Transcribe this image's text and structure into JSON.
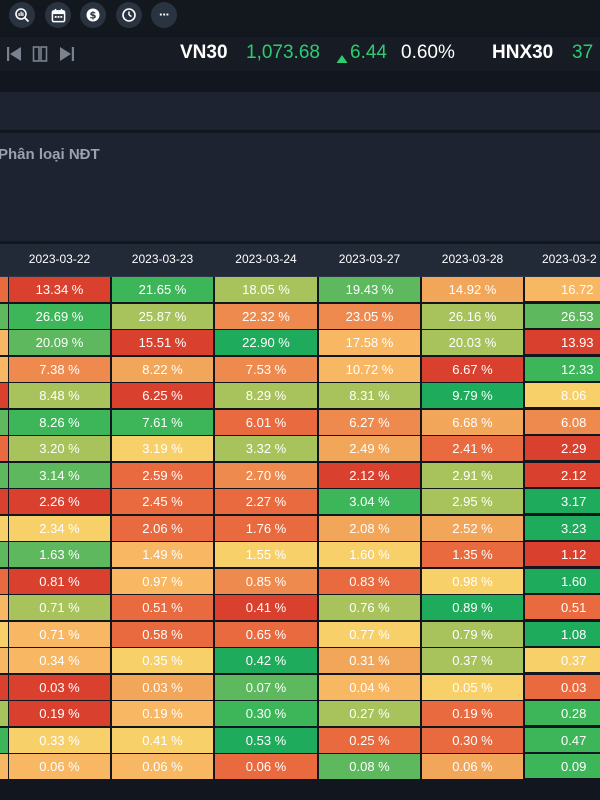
{
  "toolbar": {
    "icons": [
      {
        "name": "search-chart-icon"
      },
      {
        "name": "calendar-icon"
      },
      {
        "name": "coin-icon"
      },
      {
        "name": "clock-icon"
      },
      {
        "name": "more-icon",
        "glyph": "···"
      }
    ]
  },
  "ticker": {
    "items": [
      {
        "name": "VN30",
        "value": "1,073.68",
        "change": "6.44",
        "percent": "0.60%"
      },
      {
        "name": "HNX30",
        "value": "37"
      }
    ]
  },
  "panel": {
    "label": "Phân loại NĐT"
  },
  "table": {
    "columns": [
      "2023-03-22",
      "2023-03-23",
      "2023-03-24",
      "2023-03-27",
      "2023-03-28",
      "2023-03-2"
    ],
    "rows": [
      [
        "13.34 %",
        "21.65 %",
        "18.05 %",
        "19.43 %",
        "14.92 %",
        "16.72"
      ],
      [
        "26.69 %",
        "25.87 %",
        "22.32 %",
        "23.05 %",
        "26.16 %",
        "26.53"
      ],
      [
        "20.09 %",
        "15.51 %",
        "22.90 %",
        "17.58 %",
        "20.03 %",
        "13.93"
      ],
      [
        "7.38 %",
        "8.22 %",
        "7.53 %",
        "10.72 %",
        "6.67 %",
        "12.33"
      ],
      [
        "8.48 %",
        "6.25 %",
        "8.29 %",
        "8.31 %",
        "9.79 %",
        "8.06"
      ],
      [
        "8.26 %",
        "7.61 %",
        "6.01 %",
        "6.27 %",
        "6.68 %",
        "6.08"
      ],
      [
        "3.20 %",
        "3.19 %",
        "3.32 %",
        "2.49 %",
        "2.41 %",
        "2.29"
      ],
      [
        "3.14 %",
        "2.59 %",
        "2.70 %",
        "2.12 %",
        "2.91 %",
        "2.12"
      ],
      [
        "2.26 %",
        "2.45 %",
        "2.27 %",
        "3.04 %",
        "2.95 %",
        "3.17"
      ],
      [
        "2.34 %",
        "2.06 %",
        "1.76 %",
        "2.08 %",
        "2.52 %",
        "3.23"
      ],
      [
        "1.63 %",
        "1.49 %",
        "1.55 %",
        "1.60 %",
        "1.35 %",
        "1.12"
      ],
      [
        "0.81 %",
        "0.97 %",
        "0.85 %",
        "0.83 %",
        "0.98 %",
        "1.60"
      ],
      [
        "0.71 %",
        "0.51 %",
        "0.41 %",
        "0.76 %",
        "0.89 %",
        "0.51"
      ],
      [
        "0.71 %",
        "0.58 %",
        "0.65 %",
        "0.77 %",
        "0.79 %",
        "1.08"
      ],
      [
        "0.34 %",
        "0.35 %",
        "0.42 %",
        "0.31 %",
        "0.37 %",
        "0.37"
      ],
      [
        "0.03 %",
        "0.03 %",
        "0.07 %",
        "0.04 %",
        "0.05 %",
        "0.03"
      ],
      [
        "0.19 %",
        "0.19 %",
        "0.30 %",
        "0.27 %",
        "0.19 %",
        "0.28"
      ],
      [
        "0.33 %",
        "0.41 %",
        "0.53 %",
        "0.25 %",
        "0.30 %",
        "0.47"
      ],
      [
        "0.06 %",
        "0.06 %",
        "0.06 %",
        "0.08 %",
        "0.06 %",
        "0.09"
      ]
    ],
    "colors": [
      [
        "#d9412e",
        "#3db65a",
        "#a8c25c",
        "#5db85e",
        "#f2a65a",
        "#f7b763"
      ],
      [
        "#3db65a",
        "#a8c25c",
        "#ef8a4f",
        "#ef8a4f",
        "#a8c25c",
        "#5db85e"
      ],
      [
        "#5db85e",
        "#d9412e",
        "#1eab5c",
        "#f7b763",
        "#a8c25c",
        "#d9412e"
      ],
      [
        "#ef8a4f",
        "#f2a65a",
        "#ef8a4f",
        "#f7b763",
        "#d9412e",
        "#3db65a"
      ],
      [
        "#a8c25c",
        "#d9412e",
        "#a8c25c",
        "#a8c25c",
        "#1eab5c",
        "#f7d06a"
      ],
      [
        "#3db65a",
        "#3db65a",
        "#e86a3e",
        "#ef8a4f",
        "#f2a65a",
        "#ef8a4f"
      ],
      [
        "#a8c25c",
        "#f7d06a",
        "#a8c25c",
        "#f2a65a",
        "#e86a3e",
        "#d9412e"
      ],
      [
        "#5db85e",
        "#e86a3e",
        "#ef8a4f",
        "#d9412e",
        "#a8c25c",
        "#d9412e"
      ],
      [
        "#d9412e",
        "#e86a3e",
        "#e86a3e",
        "#3db65a",
        "#a8c25c",
        "#1eab5c"
      ],
      [
        "#f7d06a",
        "#e86a3e",
        "#e86a3e",
        "#f2a65a",
        "#f2a65a",
        "#1eab5c"
      ],
      [
        "#5db85e",
        "#f7b763",
        "#f7d06a",
        "#f7d06a",
        "#e86a3e",
        "#d9412e"
      ],
      [
        "#d9412e",
        "#f7b763",
        "#ef8a4f",
        "#e86a3e",
        "#f7d06a",
        "#1eab5c"
      ],
      [
        "#a8c25c",
        "#e86a3e",
        "#d9412e",
        "#a8c25c",
        "#1eab5c",
        "#e86a3e"
      ],
      [
        "#f7b763",
        "#e86a3e",
        "#e86a3e",
        "#f7d06a",
        "#a8c25c",
        "#1eab5c"
      ],
      [
        "#f7b763",
        "#f7d06a",
        "#1eab5c",
        "#f2a65a",
        "#a8c25c",
        "#f7d06a"
      ],
      [
        "#d9412e",
        "#f2a65a",
        "#5db85e",
        "#f7b763",
        "#f7d06a",
        "#e86a3e"
      ],
      [
        "#d9412e",
        "#f7b763",
        "#3db65a",
        "#a8c25c",
        "#e86a3e",
        "#3db65a"
      ],
      [
        "#f7d06a",
        "#f7d06a",
        "#1eab5c",
        "#e86a3e",
        "#e86a3e",
        "#3db65a"
      ],
      [
        "#f7b763",
        "#f7b763",
        "#e86a3e",
        "#5db85e",
        "#f2a65a",
        "#3db65a"
      ]
    ],
    "edge_colors": [
      "#e86a3e",
      "#5db85e",
      "#f7b763",
      "#f7b763",
      "#d9412e",
      "#5db85e",
      "#e86a3e",
      "#5db85e",
      "#d9412e",
      "#f7d06a",
      "#5db85e",
      "#e86a3e",
      "#f7b763",
      "#f7d06a",
      "#f7b763",
      "#d9412e",
      "#a8c25c",
      "#3db65a",
      "#f7b763"
    ]
  }
}
